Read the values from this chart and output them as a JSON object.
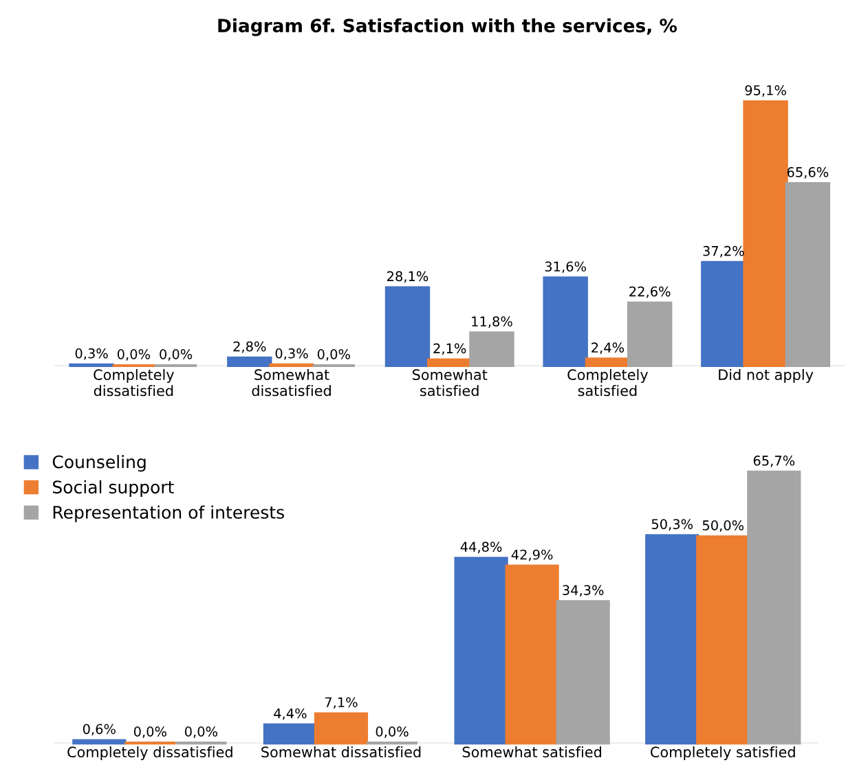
{
  "chart_data": [
    {
      "type": "bar",
      "title": "Diagram 6f. Satisfaction with the services, %",
      "categories": [
        "Completely\ndissatisfied",
        "Somewhat\ndissatisfied",
        "Somewhat\nsatisfied",
        "Completely\nsatisfied",
        "Did not apply"
      ],
      "legend": false,
      "series": [
        {
          "color": "#4472c4",
          "values": [
            0.3,
            2.8,
            28.1,
            31.6,
            37.2
          ],
          "value_labels": [
            "0,3%",
            "2,8%",
            "28,1%",
            "31,6%",
            "37,2%"
          ]
        },
        {
          "color": "#ed7d31",
          "values": [
            0.0,
            0.3,
            2.1,
            2.4,
            95.1
          ],
          "value_labels": [
            "0,0%",
            "0,3%",
            "2,1%",
            "2,4%",
            "95,1%"
          ]
        },
        {
          "color": "#a5a5a5",
          "values": [
            0.0,
            0.0,
            11.8,
            22.6,
            65.6
          ],
          "value_labels": [
            "0,0%",
            "0,0%",
            "11,8%",
            "22,6%",
            "65,6%"
          ]
        }
      ]
    },
    {
      "type": "bar",
      "categories": [
        "Completely dissatisfied",
        "Somewhat dissatisfied",
        "Somewhat satisfied",
        "Completely satisfied"
      ],
      "legend": "top left",
      "series": [
        {
          "name": "Counseling",
          "color": "#4472c4",
          "values": [
            0.6,
            4.4,
            44.8,
            50.3
          ],
          "value_labels": [
            "0,6%",
            "4,4%",
            "44,8%",
            "50,3%"
          ]
        },
        {
          "name": "Social support",
          "color": "#ed7d31",
          "values": [
            0.0,
            7.1,
            42.9,
            50.0
          ],
          "value_labels": [
            "0,0%",
            "7,1%",
            "42,9%",
            "50,0%"
          ]
        },
        {
          "name": "Representation of interests",
          "color": "#a5a5a5",
          "values": [
            0.0,
            0.0,
            34.3,
            65.7
          ],
          "value_labels": [
            "0,0%",
            "0,0%",
            "34,3%",
            "65,7%"
          ]
        }
      ]
    }
  ]
}
